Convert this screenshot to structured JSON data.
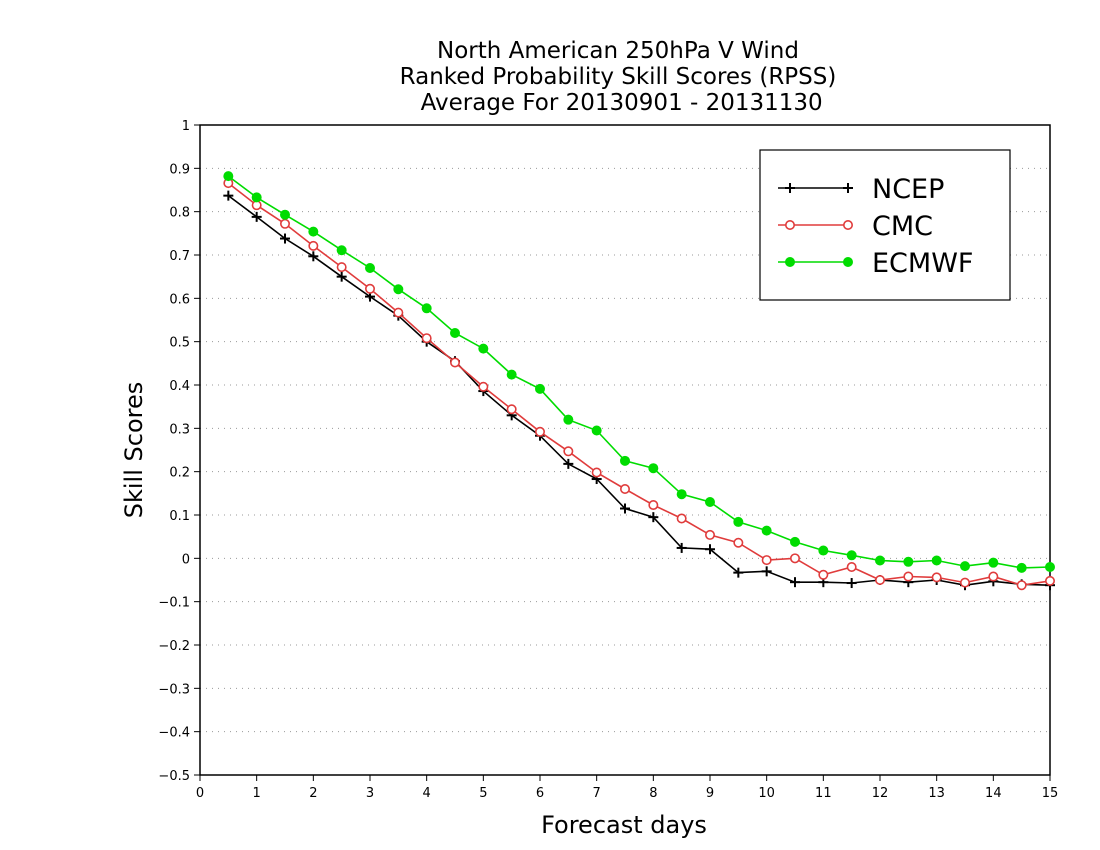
{
  "chart_data": {
    "type": "line",
    "title": [
      "North American 250hPa V Wind",
      "Ranked Probability Skill Scores (RPSS)",
      " Average For 20130901 - 20131130"
    ],
    "xlabel": "Forecast days",
    "ylabel": "Skill Scores",
    "xlim": [
      0,
      15
    ],
    "ylim": [
      -0.5,
      1
    ],
    "xticks": [
      0,
      1,
      2,
      3,
      4,
      5,
      6,
      7,
      8,
      9,
      10,
      11,
      12,
      13,
      14,
      15
    ],
    "xtick_labels": [
      "0",
      "1",
      "2",
      "3",
      "4",
      "5",
      "6",
      "7",
      "8",
      "9",
      "10",
      "11",
      "12",
      "13",
      "14",
      "15"
    ],
    "yticks": [
      -0.5,
      -0.4,
      -0.3,
      -0.2,
      -0.1,
      0,
      0.1,
      0.2,
      0.3,
      0.4,
      0.5,
      0.6,
      0.7,
      0.8,
      0.9,
      1
    ],
    "ytick_labels": [
      "−0.5",
      "−0.4",
      "−0.3",
      "−0.2",
      "−0.1",
      "0",
      "0.1",
      "0.2",
      "0.3",
      "0.4",
      "0.5",
      "0.6",
      "0.7",
      "0.8",
      "0.9",
      "1"
    ],
    "grid": "horizontal-dotted",
    "legend_position": "top-right",
    "x": [
      0.5,
      1,
      1.5,
      2,
      2.5,
      3,
      3.5,
      4,
      4.5,
      5,
      5.5,
      6,
      6.5,
      7,
      7.5,
      8,
      8.5,
      9,
      9.5,
      10,
      10.5,
      11,
      11.5,
      12,
      12.5,
      13,
      13.5,
      14,
      14.5,
      15
    ],
    "series": [
      {
        "name": "NCEP",
        "color": "#000000",
        "marker": "plus",
        "values": [
          0.837,
          0.788,
          0.738,
          0.697,
          0.65,
          0.604,
          0.56,
          0.5,
          0.455,
          0.386,
          0.33,
          0.283,
          0.218,
          0.183,
          0.115,
          0.095,
          0.024,
          0.021,
          -0.033,
          -0.03,
          -0.055,
          -0.055,
          -0.057,
          -0.05,
          -0.055,
          -0.05,
          -0.062,
          -0.053,
          -0.06,
          -0.062
        ]
      },
      {
        "name": "CMC",
        "color": "#e03c3c",
        "marker": "open-circle",
        "values": [
          0.866,
          0.815,
          0.772,
          0.721,
          0.672,
          0.622,
          0.567,
          0.508,
          0.452,
          0.396,
          0.344,
          0.292,
          0.247,
          0.198,
          0.16,
          0.123,
          0.092,
          0.054,
          0.036,
          -0.004,
          0.0,
          -0.038,
          -0.02,
          -0.05,
          -0.042,
          -0.044,
          -0.056,
          -0.042,
          -0.062,
          -0.052
        ]
      },
      {
        "name": "ECMWF",
        "color": "#00dc00",
        "marker": "filled-circle",
        "values": [
          0.882,
          0.833,
          0.793,
          0.754,
          0.711,
          0.67,
          0.621,
          0.577,
          0.52,
          0.484,
          0.424,
          0.391,
          0.32,
          0.295,
          0.225,
          0.208,
          0.148,
          0.13,
          0.084,
          0.064,
          0.038,
          0.018,
          0.007,
          -0.005,
          -0.008,
          -0.005,
          -0.018,
          -0.01,
          -0.022,
          -0.02
        ]
      }
    ]
  }
}
